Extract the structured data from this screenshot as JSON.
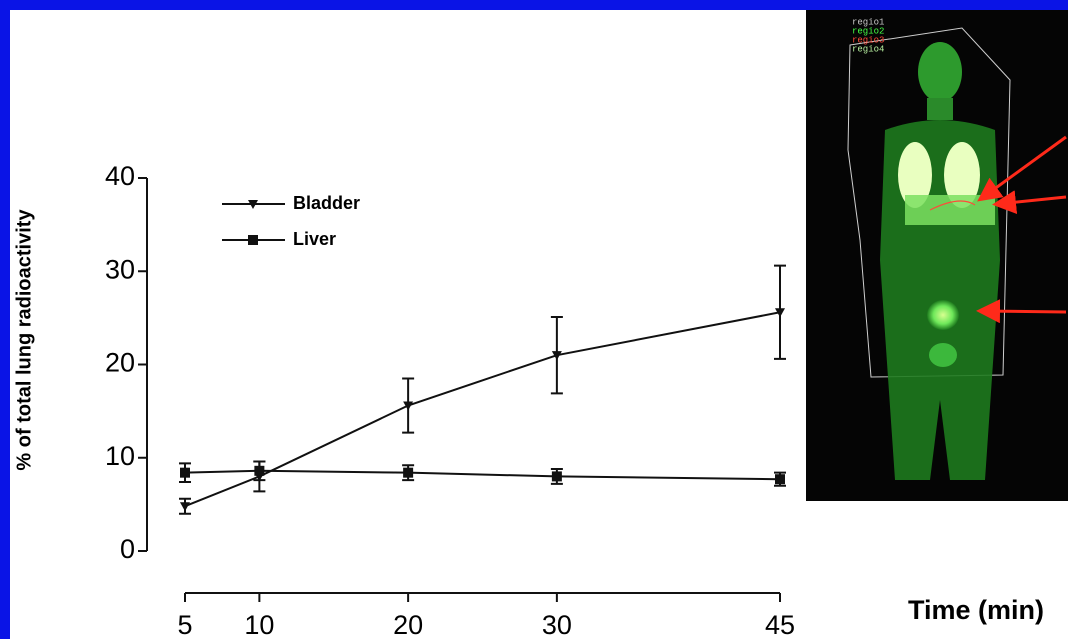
{
  "chart_data": {
    "type": "line",
    "ylabel": "% of total lung radioactivity",
    "xlabel": "Time (min)",
    "x": [
      5,
      10,
      20,
      30,
      45
    ],
    "xlim": [
      5,
      45
    ],
    "xticks": [
      5,
      10,
      20,
      30,
      45
    ],
    "ylim": [
      0,
      40
    ],
    "yticks": [
      0,
      10,
      20,
      30,
      40
    ],
    "legend": "upper left",
    "series": [
      {
        "name": "Bladder",
        "color": "#111111",
        "marker": "triangle-down",
        "values": [
          4.8,
          8,
          15.6,
          21,
          25.6
        ],
        "errors": [
          0.8,
          1.6,
          2.9,
          4.1,
          5
        ]
      },
      {
        "name": "Liver",
        "color": "#111111",
        "marker": "square",
        "values": [
          8.4,
          8.6,
          8.4,
          8,
          7.7
        ],
        "errors": [
          1,
          1,
          0.8,
          0.8,
          0.7
        ]
      }
    ]
  },
  "image": {
    "labels": [
      {
        "text": "regio1",
        "color": "#c8c8c8"
      },
      {
        "text": "regio2",
        "color": "#44ff44"
      },
      {
        "text": "regio3",
        "color": "#ff4a3a"
      },
      {
        "text": "regio4",
        "color": "#b8f0a0"
      }
    ]
  }
}
